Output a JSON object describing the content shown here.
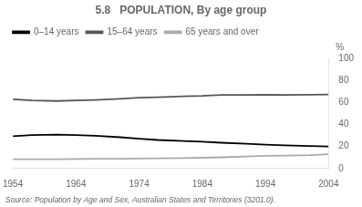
{
  "chart_data": {
    "type": "line",
    "title": "5.8   POPULATION, By age group",
    "ylabel": "%",
    "source": "Source: Population by Age and Sex, Australian States and Territories (3201.0).",
    "x": [
      1954,
      1957,
      1961,
      1964,
      1967,
      1971,
      1974,
      1977,
      1981,
      1984,
      1987,
      1991,
      1994,
      1997,
      2001,
      2004
    ],
    "series": [
      {
        "name": "0–14 years",
        "color": "#000000",
        "values": [
          29.5,
          30.5,
          30.8,
          30.5,
          29.8,
          28.5,
          27.2,
          26.0,
          25.0,
          24.5,
          23.5,
          22.5,
          21.8,
          21.2,
          20.5,
          20.0
        ]
      },
      {
        "name": "15–64 years",
        "color": "#555555",
        "values": [
          63.0,
          62.0,
          61.5,
          62.0,
          62.5,
          63.5,
          64.5,
          65.0,
          65.8,
          66.2,
          67.0,
          67.0,
          67.2,
          67.0,
          67.2,
          67.5
        ]
      },
      {
        "name": "65 years and over",
        "color": "#aaaaaa",
        "values": [
          8.5,
          8.5,
          8.5,
          8.7,
          8.8,
          8.9,
          9.0,
          9.2,
          9.5,
          9.8,
          10.2,
          11.0,
          11.5,
          11.8,
          12.2,
          13.0
        ]
      }
    ],
    "xlim": [
      1954,
      2004
    ],
    "xticks": [
      1954,
      1964,
      1974,
      1984,
      1994,
      2004
    ],
    "ylim": [
      0,
      100
    ],
    "yticks": [
      0,
      20,
      40,
      60,
      80,
      100
    ],
    "grid": false,
    "legend": "upper left"
  }
}
